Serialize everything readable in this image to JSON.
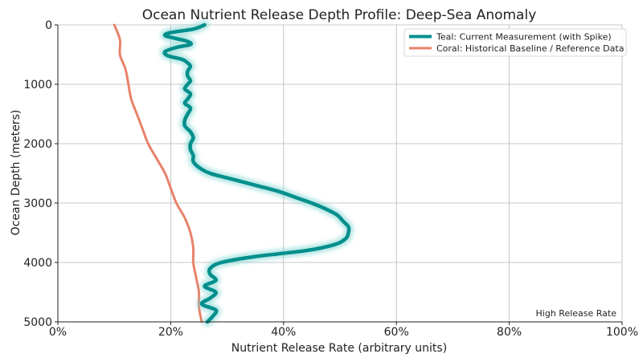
{
  "chart_data": {
    "type": "line",
    "title": "Ocean Nutrient Release Depth Profile: Deep-Sea Anomaly",
    "xlabel": "Nutrient Release Rate (arbitrary units)",
    "ylabel": "Ocean Depth (meters)",
    "xlim": [
      0,
      100
    ],
    "ylim": [
      5000,
      0
    ],
    "y_inverted": true,
    "x_ticks": [
      0,
      20,
      40,
      60,
      80,
      100
    ],
    "x_tick_labels": [
      "0%",
      "20%",
      "40%",
      "60%",
      "80%",
      "100%"
    ],
    "y_ticks": [
      0,
      1000,
      2000,
      3000,
      4000,
      5000
    ],
    "y_tick_labels": [
      "0",
      "1000",
      "2000",
      "3000",
      "4000",
      "5000"
    ],
    "grid": true,
    "legend_position": "top-right",
    "annotation": "High Release Rate",
    "series": [
      {
        "name": "Teal: Current Measurement (with Spike)",
        "color": "#008f8c",
        "glow_color": "#7fd6d2",
        "points": [
          [
            26,
            0
          ],
          [
            24,
            70
          ],
          [
            20,
            130
          ],
          [
            19,
            180
          ],
          [
            21,
            230
          ],
          [
            23,
            280
          ],
          [
            23.5,
            330
          ],
          [
            21,
            380
          ],
          [
            19,
            450
          ],
          [
            19.5,
            520
          ],
          [
            22,
            580
          ],
          [
            23,
            640
          ],
          [
            23.5,
            700
          ],
          [
            23,
            780
          ],
          [
            23,
            860
          ],
          [
            23.5,
            940
          ],
          [
            23,
            1000
          ],
          [
            22.5,
            1080
          ],
          [
            23.5,
            1160
          ],
          [
            23,
            1250
          ],
          [
            22.5,
            1320
          ],
          [
            23.5,
            1400
          ],
          [
            23,
            1500
          ],
          [
            22.5,
            1600
          ],
          [
            22.5,
            1700
          ],
          [
            23.5,
            1800
          ],
          [
            24,
            1900
          ],
          [
            23.5,
            2000
          ],
          [
            23.5,
            2100
          ],
          [
            24,
            2200
          ],
          [
            24,
            2300
          ],
          [
            25,
            2400
          ],
          [
            27,
            2500
          ],
          [
            31,
            2600
          ],
          [
            35,
            2700
          ],
          [
            39,
            2800
          ],
          [
            42,
            2900
          ],
          [
            45,
            3000
          ],
          [
            47.5,
            3100
          ],
          [
            49.5,
            3200
          ],
          [
            50.5,
            3300
          ],
          [
            51.5,
            3400
          ],
          [
            51.5,
            3500
          ],
          [
            51,
            3600
          ],
          [
            49,
            3700
          ],
          [
            44,
            3800
          ],
          [
            35,
            3900
          ],
          [
            29,
            4000
          ],
          [
            27,
            4100
          ],
          [
            27,
            4200
          ],
          [
            28,
            4300
          ],
          [
            26,
            4400
          ],
          [
            28,
            4500
          ],
          [
            27,
            4600
          ],
          [
            25.5,
            4700
          ],
          [
            28,
            4800
          ],
          [
            27.5,
            4900
          ],
          [
            26.5,
            5000
          ]
        ]
      },
      {
        "name": "Coral: Historical Baseline / Reference Data",
        "color": "#e8826a",
        "points": [
          [
            10,
            0
          ],
          [
            11,
            250
          ],
          [
            11,
            500
          ],
          [
            12,
            750
          ],
          [
            12.5,
            1000
          ],
          [
            13,
            1250
          ],
          [
            14,
            1500
          ],
          [
            15,
            1750
          ],
          [
            16,
            2000
          ],
          [
            17.5,
            2250
          ],
          [
            19,
            2500
          ],
          [
            20,
            2750
          ],
          [
            21,
            3000
          ],
          [
            22.5,
            3250
          ],
          [
            23.5,
            3500
          ],
          [
            24,
            3750
          ],
          [
            24,
            4000
          ],
          [
            24.5,
            4250
          ],
          [
            25,
            4500
          ],
          [
            25,
            4750
          ],
          [
            25.5,
            5000
          ]
        ]
      }
    ]
  }
}
